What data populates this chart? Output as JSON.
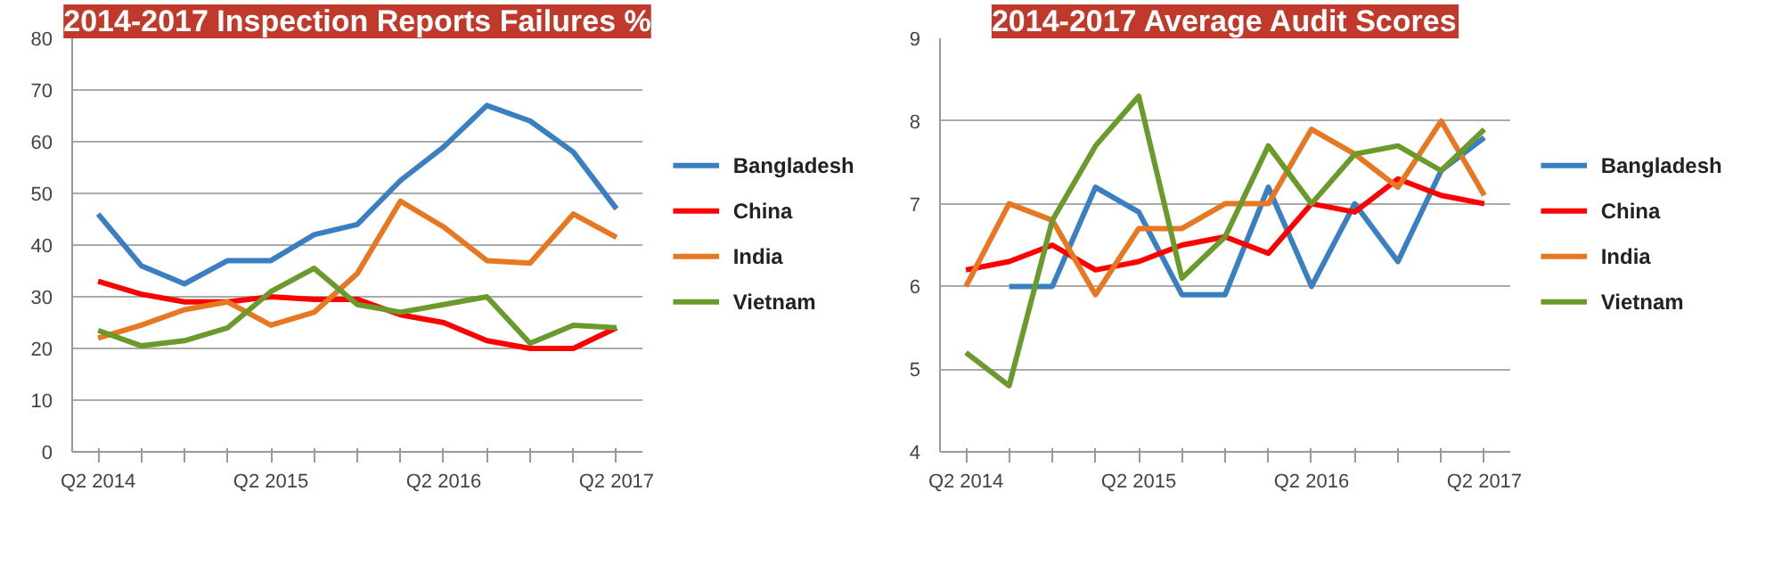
{
  "chart_data": [
    {
      "type": "line",
      "title": "2014-2017 Inspection Reports Failures %",
      "categories": [
        "Q2 2014",
        null,
        null,
        null,
        "Q2 2015",
        null,
        null,
        null,
        "Q2 2016",
        null,
        null,
        null,
        "Q2 2017"
      ],
      "series": [
        {
          "name": "Bangladesh",
          "color": "#3a7fc1",
          "values": [
            46,
            36,
            32.5,
            37,
            37,
            42,
            44,
            52.5,
            59,
            67,
            64,
            58,
            47
          ]
        },
        {
          "name": "China",
          "color": "#ff0000",
          "values": [
            33,
            30.5,
            29,
            29,
            30,
            29.5,
            29.5,
            26.5,
            25,
            21.5,
            20,
            20,
            24
          ]
        },
        {
          "name": "India",
          "color": "#e87722",
          "values": [
            22,
            24.5,
            27.5,
            29,
            24.5,
            27,
            34.5,
            48.5,
            43.5,
            37,
            36.5,
            46,
            41.5
          ]
        },
        {
          "name": "Vietnam",
          "color": "#6b9a2c",
          "values": [
            23.5,
            20.5,
            21.5,
            24,
            31,
            35.5,
            28.5,
            27,
            28.5,
            30,
            21,
            24.5,
            24
          ]
        }
      ],
      "ylim": [
        0,
        80
      ],
      "yticks": [
        0,
        10,
        20,
        30,
        40,
        50,
        60,
        70,
        80
      ],
      "grid": "y",
      "legend": "right",
      "marker": "none",
      "line_style": "solid"
    },
    {
      "type": "line",
      "title": "2014-2017 Average Audit Scores",
      "categories": [
        "Q2 2014",
        null,
        null,
        null,
        "Q2 2015",
        null,
        null,
        null,
        "Q2 2016",
        null,
        null,
        null,
        "Q2 2017"
      ],
      "series": [
        {
          "name": "Bangladesh",
          "color": "#3a7fc1",
          "values": [
            null,
            6,
            6,
            7.2,
            6.9,
            5.9,
            5.9,
            7.2,
            6,
            7,
            6.3,
            7.4,
            7.8
          ]
        },
        {
          "name": "China",
          "color": "#ff0000",
          "values": [
            6.2,
            6.3,
            6.5,
            6.2,
            6.3,
            6.5,
            6.6,
            6.4,
            7,
            6.9,
            7.3,
            7.1,
            7
          ]
        },
        {
          "name": "India",
          "color": "#e87722",
          "values": [
            6,
            7,
            6.8,
            5.9,
            6.7,
            6.7,
            7,
            7,
            7.9,
            7.6,
            7.2,
            8,
            7.1
          ]
        },
        {
          "name": "Vietnam",
          "color": "#6b9a2c",
          "values": [
            5.2,
            4.8,
            6.8,
            7.7,
            8.3,
            6.1,
            6.6,
            7.7,
            7,
            7.6,
            7.7,
            7.4,
            7.9
          ]
        }
      ],
      "ylim": [
        4,
        9
      ],
      "yticks": [
        4,
        5,
        6,
        7,
        8,
        9
      ],
      "grid": "y",
      "legend": "right",
      "marker": "none",
      "line_style": "solid"
    }
  ]
}
